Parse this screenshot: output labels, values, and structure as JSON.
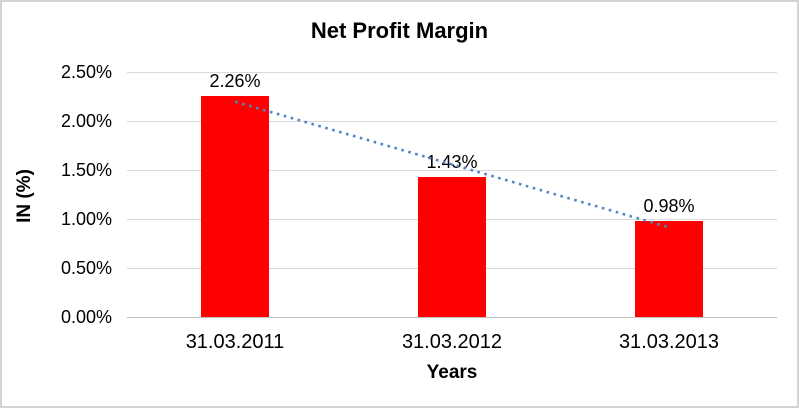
{
  "chart_data": {
    "type": "bar",
    "title": "Net Profit Margin",
    "xlabel": "Years",
    "ylabel": "IN (%)",
    "categories": [
      "31.03.2011",
      "31.03.2012",
      "31.03.2013"
    ],
    "values": [
      2.26,
      1.43,
      0.98
    ],
    "data_labels": [
      "2.26%",
      "1.43%",
      "0.98%"
    ],
    "ytick_values": [
      0,
      0.5,
      1,
      1.5,
      2,
      2.5
    ],
    "ytick_labels": [
      "0.00%",
      "0.50%",
      "1.00%",
      "1.50%",
      "2.00%",
      "2.50%"
    ],
    "ylim": [
      0,
      2.5
    ],
    "grid": "horizontal",
    "legend": "none",
    "bar_color": "#ff0000",
    "gridline_color": "#d9d9d9",
    "trendline": {
      "type": "linear",
      "style": "dotted",
      "color": "#4e86c6"
    }
  }
}
